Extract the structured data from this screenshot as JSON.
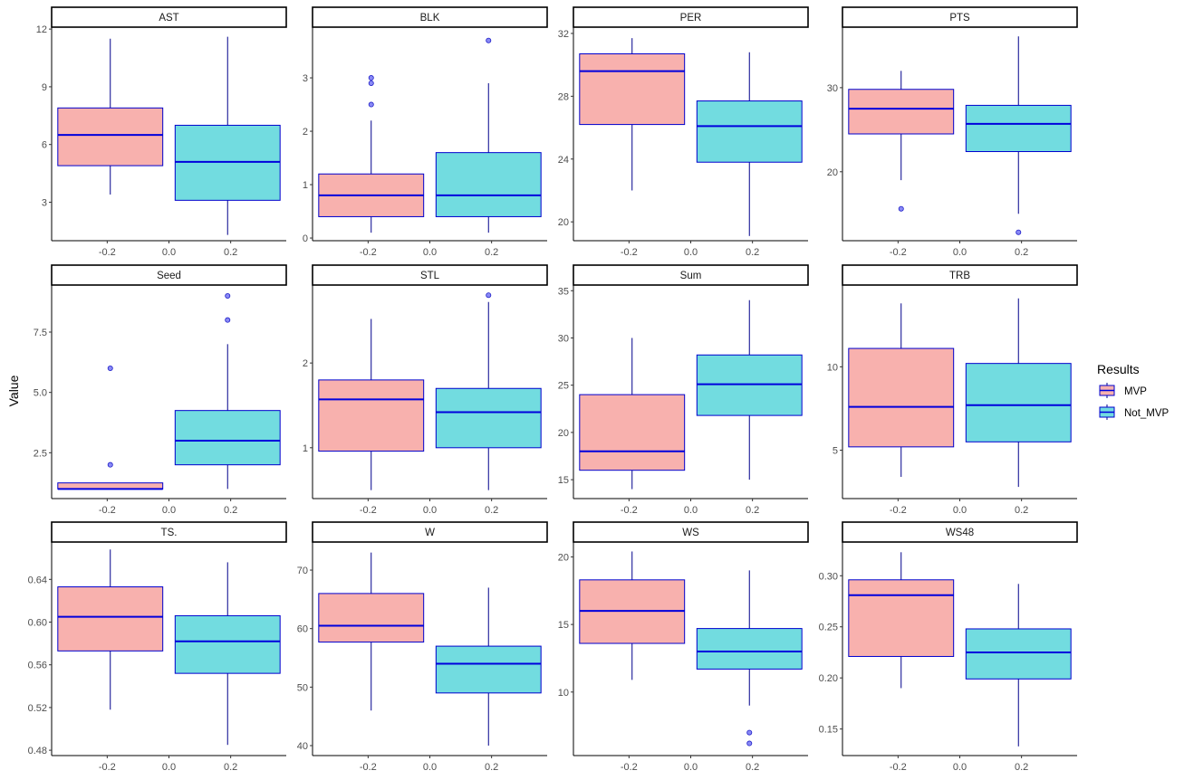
{
  "colors": {
    "mvp_fill": "#F8B1AE",
    "not_mvp_fill": "#72DCE0",
    "box_border": "#0000CD",
    "median": "#0000DD",
    "whisker": "#00008B",
    "outlier_fill": "#8A8AF5",
    "outlier_stroke": "#1E1EC8",
    "axis": "#000000",
    "tick_label": "#4D4D4D"
  },
  "chart_data": {
    "type": "boxplot",
    "ylabel": "Value",
    "xlabel": "",
    "x_ticks": [
      -0.2,
      0.0,
      0.2
    ],
    "x_tick_labels": [
      "-0.2",
      "0.0",
      "0.2"
    ],
    "xlim": [
      -0.38,
      0.38
    ],
    "legend": {
      "title": "Results",
      "placement": "right",
      "entries": [
        "MVP",
        "Not_MVP"
      ]
    },
    "panels": [
      {
        "label": "AST",
        "ylim": [
          1.0,
          12.1
        ],
        "y_ticks": [
          3,
          6,
          9,
          12
        ],
        "y_tick_labels": [
          "3",
          "6",
          "9",
          "12"
        ],
        "boxes": [
          {
            "group": "MVP",
            "x": -0.19,
            "min": 3.4,
            "q1": 4.9,
            "median": 6.5,
            "q3": 7.9,
            "max": 11.5,
            "outliers": []
          },
          {
            "group": "Not_MVP",
            "x": 0.19,
            "min": 1.3,
            "q1": 3.1,
            "median": 5.1,
            "q3": 7.0,
            "max": 11.6,
            "outliers": []
          }
        ]
      },
      {
        "label": "BLK",
        "ylim": [
          -0.05,
          3.95
        ],
        "y_ticks": [
          0,
          1,
          2,
          3
        ],
        "y_tick_labels": [
          "0",
          "1",
          "2",
          "3"
        ],
        "boxes": [
          {
            "group": "MVP",
            "x": -0.19,
            "min": 0.1,
            "q1": 0.4,
            "median": 0.8,
            "q3": 1.2,
            "max": 2.2,
            "outliers": [
              2.5,
              2.9,
              3.0
            ]
          },
          {
            "group": "Not_MVP",
            "x": 0.19,
            "min": 0.1,
            "q1": 0.4,
            "median": 0.8,
            "q3": 1.6,
            "max": 2.9,
            "outliers": [
              3.7
            ]
          }
        ]
      },
      {
        "label": "PER",
        "ylim": [
          18.8,
          32.4
        ],
        "y_ticks": [
          20,
          24,
          28,
          32
        ],
        "y_tick_labels": [
          "20",
          "24",
          "28",
          "32"
        ],
        "boxes": [
          {
            "group": "MVP",
            "x": -0.19,
            "min": 22.0,
            "q1": 26.2,
            "median": 29.6,
            "q3": 30.7,
            "max": 31.7,
            "outliers": []
          },
          {
            "group": "Not_MVP",
            "x": 0.19,
            "min": 19.1,
            "q1": 23.8,
            "median": 26.1,
            "q3": 27.7,
            "max": 30.8,
            "outliers": []
          }
        ]
      },
      {
        "label": "PTS",
        "ylim": [
          11.8,
          37.2
        ],
        "y_ticks": [
          20,
          30
        ],
        "y_tick_labels": [
          "20",
          "30"
        ],
        "boxes": [
          {
            "group": "MVP",
            "x": -0.19,
            "min": 19.0,
            "q1": 24.5,
            "median": 27.5,
            "q3": 29.8,
            "max": 32.0,
            "outliers": [
              15.6
            ]
          },
          {
            "group": "Not_MVP",
            "x": 0.19,
            "min": 15.0,
            "q1": 22.4,
            "median": 25.7,
            "q3": 27.9,
            "max": 36.1,
            "outliers": [
              12.8
            ]
          }
        ]
      },
      {
        "label": "Seed",
        "ylim": [
          0.6,
          9.45
        ],
        "y_ticks": [
          2.5,
          5.0,
          7.5
        ],
        "y_tick_labels": [
          "2.5",
          "5.0",
          "7.5"
        ],
        "boxes": [
          {
            "group": "MVP",
            "x": -0.19,
            "min": 1.0,
            "q1": 1.0,
            "median": 1.0,
            "q3": 1.25,
            "max": 1.25,
            "outliers": [
              2,
              6
            ]
          },
          {
            "group": "Not_MVP",
            "x": 0.19,
            "min": 1.0,
            "q1": 2.0,
            "median": 3.0,
            "q3": 4.25,
            "max": 7.0,
            "outliers": [
              8,
              9
            ]
          }
        ]
      },
      {
        "label": "STL",
        "ylim": [
          0.4,
          2.92
        ],
        "y_ticks": [
          1,
          2
        ],
        "y_tick_labels": [
          "1",
          "2"
        ],
        "boxes": [
          {
            "group": "MVP",
            "x": -0.19,
            "min": 0.5,
            "q1": 0.96,
            "median": 1.57,
            "q3": 1.8,
            "max": 2.52,
            "outliers": []
          },
          {
            "group": "Not_MVP",
            "x": 0.19,
            "min": 0.5,
            "q1": 1.0,
            "median": 1.42,
            "q3": 1.7,
            "max": 2.72,
            "outliers": [
              2.8
            ]
          }
        ]
      },
      {
        "label": "Sum",
        "ylim": [
          13.0,
          35.6
        ],
        "y_ticks": [
          15,
          20,
          25,
          30,
          35
        ],
        "y_tick_labels": [
          "15",
          "20",
          "25",
          "30",
          "35"
        ],
        "boxes": [
          {
            "group": "MVP",
            "x": -0.19,
            "min": 14.0,
            "q1": 16.0,
            "median": 18.0,
            "q3": 24.0,
            "max": 30.0,
            "outliers": []
          },
          {
            "group": "Not_MVP",
            "x": 0.19,
            "min": 15.0,
            "q1": 21.8,
            "median": 25.1,
            "q3": 28.2,
            "max": 34.0,
            "outliers": []
          }
        ]
      },
      {
        "label": "TRB",
        "ylim": [
          2.1,
          14.9
        ],
        "y_ticks": [
          5,
          10
        ],
        "y_tick_labels": [
          "5",
          "10"
        ],
        "boxes": [
          {
            "group": "MVP",
            "x": -0.19,
            "min": 3.4,
            "q1": 5.2,
            "median": 7.6,
            "q3": 11.1,
            "max": 13.8,
            "outliers": []
          },
          {
            "group": "Not_MVP",
            "x": 0.19,
            "min": 2.8,
            "q1": 5.5,
            "median": 7.7,
            "q3": 10.2,
            "max": 14.1,
            "outliers": []
          }
        ]
      },
      {
        "label": "TS.",
        "ylim": [
          0.475,
          0.675
        ],
        "y_ticks": [
          0.48,
          0.52,
          0.56,
          0.6,
          0.64
        ],
        "y_tick_labels": [
          "0.48",
          "0.52",
          "0.56",
          "0.60",
          "0.64"
        ],
        "boxes": [
          {
            "group": "MVP",
            "x": -0.19,
            "min": 0.518,
            "q1": 0.573,
            "median": 0.605,
            "q3": 0.633,
            "max": 0.668,
            "outliers": []
          },
          {
            "group": "Not_MVP",
            "x": 0.19,
            "min": 0.485,
            "q1": 0.552,
            "median": 0.582,
            "q3": 0.606,
            "max": 0.656,
            "outliers": []
          }
        ]
      },
      {
        "label": "W",
        "ylim": [
          38.3,
          74.8
        ],
        "y_ticks": [
          40,
          50,
          60,
          70
        ],
        "y_tick_labels": [
          "40",
          "50",
          "60",
          "70"
        ],
        "boxes": [
          {
            "group": "MVP",
            "x": -0.19,
            "min": 46.0,
            "q1": 57.7,
            "median": 60.5,
            "q3": 66.0,
            "max": 73.0,
            "outliers": []
          },
          {
            "group": "Not_MVP",
            "x": 0.19,
            "min": 40.0,
            "q1": 49.0,
            "median": 54.0,
            "q3": 57.0,
            "max": 67.0,
            "outliers": []
          }
        ]
      },
      {
        "label": "WS",
        "ylim": [
          5.3,
          21.1
        ],
        "y_ticks": [
          10,
          15,
          20
        ],
        "y_tick_labels": [
          "10",
          "15",
          "20"
        ],
        "boxes": [
          {
            "group": "MVP",
            "x": -0.19,
            "min": 10.9,
            "q1": 13.6,
            "median": 16.0,
            "q3": 18.3,
            "max": 20.4,
            "outliers": []
          },
          {
            "group": "Not_MVP",
            "x": 0.19,
            "min": 9.0,
            "q1": 11.7,
            "median": 13.0,
            "q3": 14.7,
            "max": 19.0,
            "outliers": [
              6.2,
              7.0
            ]
          }
        ]
      },
      {
        "label": "WS48",
        "ylim": [
          0.124,
          0.333
        ],
        "y_ticks": [
          0.15,
          0.2,
          0.25,
          0.3
        ],
        "y_tick_labels": [
          "0.15",
          "0.20",
          "0.25",
          "0.30"
        ],
        "boxes": [
          {
            "group": "MVP",
            "x": -0.19,
            "min": 0.19,
            "q1": 0.221,
            "median": 0.281,
            "q3": 0.296,
            "max": 0.323,
            "outliers": []
          },
          {
            "group": "Not_MVP",
            "x": 0.19,
            "min": 0.133,
            "q1": 0.199,
            "median": 0.225,
            "q3": 0.248,
            "max": 0.292,
            "outliers": []
          }
        ]
      }
    ]
  }
}
